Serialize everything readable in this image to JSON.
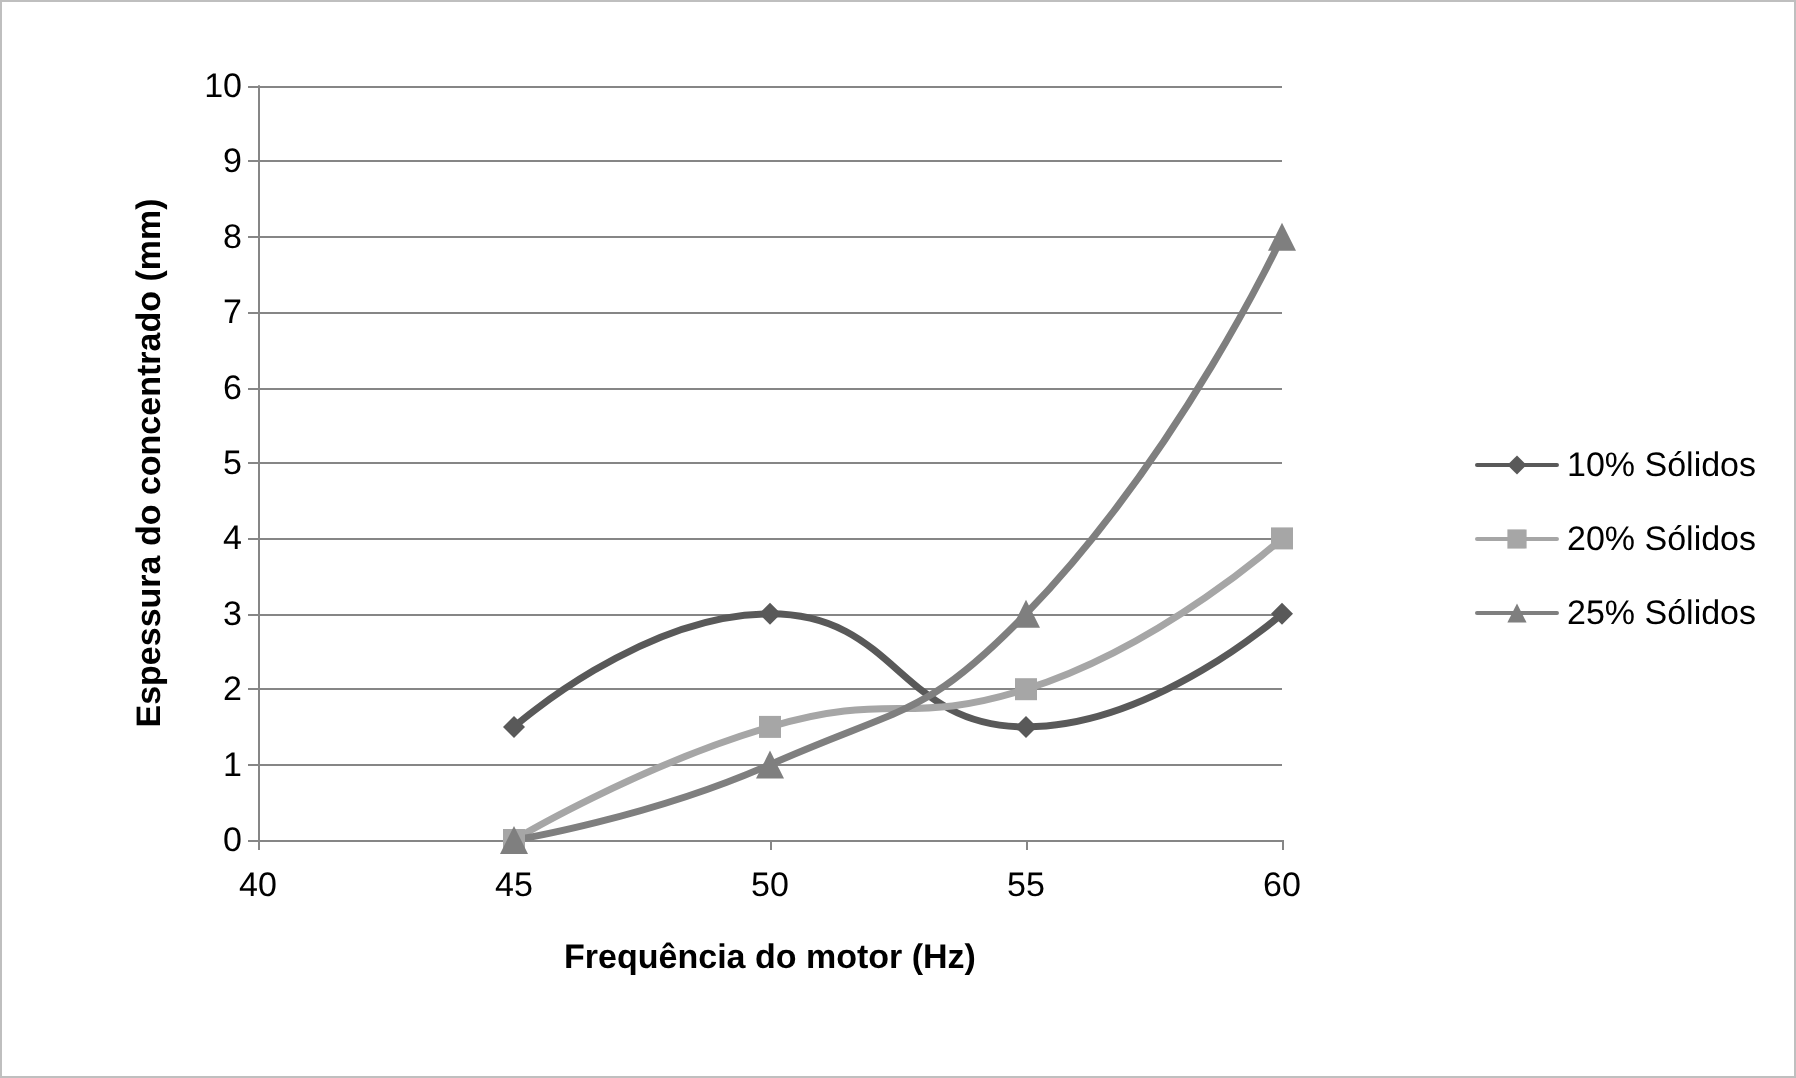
{
  "chart_data": {
    "type": "line",
    "xlabel": "Frequência do motor (Hz)",
    "ylabel": "Espessura do concentrado (mm)",
    "x": [
      45,
      50,
      55,
      60
    ],
    "series": [
      {
        "name": "10% Sólidos",
        "color": "#595959",
        "marker": "diamond",
        "values": [
          1.5,
          3,
          1.5,
          3
        ]
      },
      {
        "name": "20% Sólidos",
        "color": "#a6a6a6",
        "marker": "square",
        "values": [
          0,
          1.5,
          2,
          4
        ]
      },
      {
        "name": "25% Sólidos",
        "color": "#7f7f7f",
        "marker": "triangle",
        "values": [
          0,
          1,
          3,
          8
        ]
      }
    ],
    "xlim": [
      40,
      60
    ],
    "xticks": [
      40,
      45,
      50,
      55,
      60
    ],
    "ylim": [
      0,
      10
    ],
    "yticks": [
      0,
      1,
      2,
      3,
      4,
      5,
      6,
      7,
      8,
      9,
      10
    ],
    "grid": "y",
    "legend": "right",
    "line_style": "solid"
  }
}
